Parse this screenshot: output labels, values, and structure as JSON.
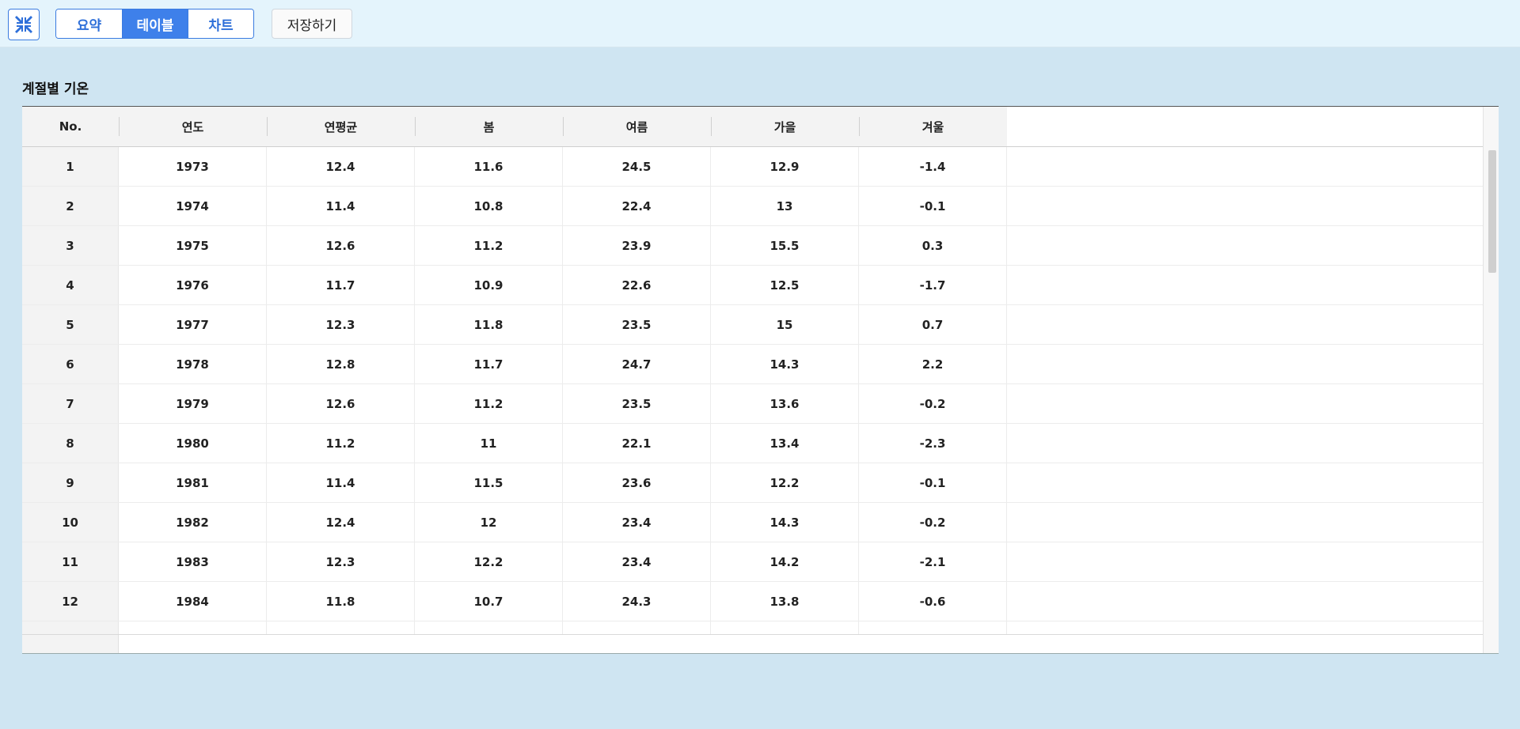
{
  "toolbar": {
    "tabs": [
      {
        "label": "요약",
        "active": false
      },
      {
        "label": "테이블",
        "active": true
      },
      {
        "label": "차트",
        "active": false
      }
    ],
    "save_label": "저장하기",
    "accent_color": "#3e80ea"
  },
  "section": {
    "title": "계절별 기온"
  },
  "table": {
    "columns": [
      "No.",
      "연도",
      "연평균",
      "봄",
      "여름",
      "가을",
      "겨울"
    ],
    "rows": [
      [
        "1",
        "1973",
        "12.4",
        "11.6",
        "24.5",
        "12.9",
        "-1.4"
      ],
      [
        "2",
        "1974",
        "11.4",
        "10.8",
        "22.4",
        "13",
        "-0.1"
      ],
      [
        "3",
        "1975",
        "12.6",
        "11.2",
        "23.9",
        "15.5",
        "0.3"
      ],
      [
        "4",
        "1976",
        "11.7",
        "10.9",
        "22.6",
        "12.5",
        "-1.7"
      ],
      [
        "5",
        "1977",
        "12.3",
        "11.8",
        "23.5",
        "15",
        "0.7"
      ],
      [
        "6",
        "1978",
        "12.8",
        "11.7",
        "24.7",
        "14.3",
        "2.2"
      ],
      [
        "7",
        "1979",
        "12.6",
        "11.2",
        "23.5",
        "13.6",
        "-0.2"
      ],
      [
        "8",
        "1980",
        "11.2",
        "11",
        "22.1",
        "13.4",
        "-2.3"
      ],
      [
        "9",
        "1981",
        "11.4",
        "11.5",
        "23.6",
        "12.2",
        "-0.1"
      ],
      [
        "10",
        "1982",
        "12.4",
        "12",
        "23.4",
        "14.3",
        "-0.2"
      ],
      [
        "11",
        "1983",
        "12.3",
        "12.2",
        "23.4",
        "14.2",
        "-2.1"
      ],
      [
        "12",
        "1984",
        "11.8",
        "10.7",
        "24.3",
        "13.8",
        "-0.6"
      ]
    ]
  }
}
